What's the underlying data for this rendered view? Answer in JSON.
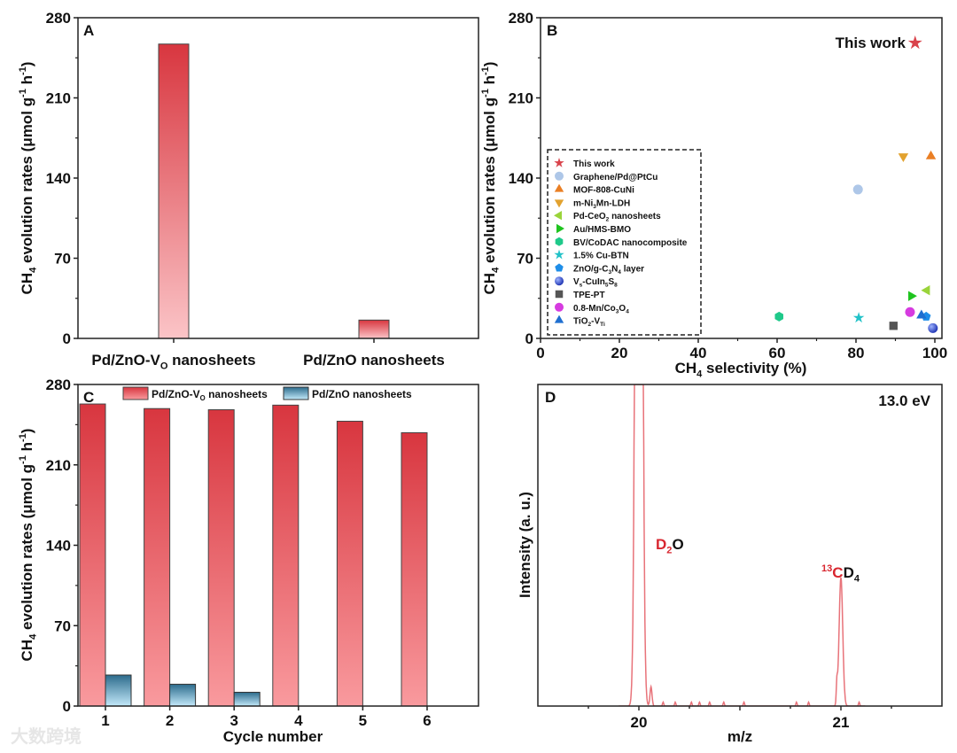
{
  "colors": {
    "red_top": "#d8363f",
    "red_bottom": "#fbc4c7",
    "red2_bottom": "#f99a9e",
    "blue_top": "#2c6b8c",
    "blue_bottom": "#c3e9fa",
    "spectrum": "#e8737a",
    "label_red": "#d8262f"
  },
  "chart_data": [
    {
      "panel": "A",
      "type": "bar",
      "categories": [
        "Pd/ZnO-_{V}{O} nanosheets",
        "Pd/ZnO nanosheets"
      ],
      "category_labels": [
        "Pd/ZnO-V_{O} nanosheets",
        "Pd/ZnO nanosheets"
      ],
      "values": [
        257,
        16
      ],
      "ylabel": "CH_{4} evolution rates (μmol g^{-1} h^{-1})",
      "ylim": [
        0,
        280
      ],
      "yticks": [
        0,
        70,
        140,
        210,
        280
      ]
    },
    {
      "panel": "B",
      "type": "scatter",
      "xlabel": "CH_{4} selectivity (%)",
      "ylabel": "CH_{4} evolution rates (μmol g^{-1} h^{-1})",
      "xlim": [
        0,
        100
      ],
      "xticks": [
        0,
        20,
        40,
        60,
        80,
        100
      ],
      "ylim": [
        0,
        280
      ],
      "yticks": [
        0,
        70,
        140,
        210,
        280
      ],
      "annotation": "This work",
      "legend_position": "left",
      "series": [
        {
          "name": "This work",
          "marker": "star",
          "color": "#d9434b",
          "x": 95,
          "y": 258
        },
        {
          "name": "Graphene/Pd@PtCu",
          "marker": "circle",
          "color": "#aec7e8",
          "x": 80.5,
          "y": 130
        },
        {
          "name": "MOF-808-CuNi",
          "marker": "triangle-up",
          "color": "#ea7f24",
          "x": 99,
          "y": 159
        },
        {
          "name": "m-Ni_{3}Mn-LDH",
          "marker": "triangle-down",
          "color": "#e2a22f",
          "x": 92,
          "y": 159
        },
        {
          "name": "Pd-CeO_{2} nanosheets",
          "marker": "triangle-left",
          "color": "#9ad43a",
          "x": 98,
          "y": 42
        },
        {
          "name": "Au/HMS-BMO",
          "marker": "triangle-right",
          "color": "#1fc41f",
          "x": 94,
          "y": 37
        },
        {
          "name": "BV/CoDAC nanocomposite",
          "marker": "hexagon",
          "color": "#1fc98a",
          "x": 60.5,
          "y": 19
        },
        {
          "name": "1.5% Cu-BTN",
          "marker": "star",
          "color": "#22c2c8",
          "x": 80.7,
          "y": 18
        },
        {
          "name": "ZnO/g-C_{3}N_{4} layer",
          "marker": "pentagon",
          "color": "#1f8ee8",
          "x": 97.8,
          "y": 19
        },
        {
          "name": "V_{s}-CuIn_{5}S_{8}",
          "marker": "sphere",
          "color": "#1a3fd0",
          "x": 99.5,
          "y": 9
        },
        {
          "name": "TPE-PT",
          "marker": "square",
          "color": "#555555",
          "x": 89.5,
          "y": 11
        },
        {
          "name": "0.8-Mn/Co_{3}O_{4}",
          "marker": "circle",
          "color": "#d63be0",
          "x": 93.7,
          "y": 23
        },
        {
          "name": "TiO_{2}-V_{Ti}",
          "marker": "triangle-up",
          "color": "#1f6fd0",
          "x": 96.6,
          "y": 20
        }
      ]
    },
    {
      "panel": "C",
      "type": "bar",
      "xlabel": "Cycle number",
      "ylabel": "CH_{4} evolution rates (μmol g^{-1} h^{-1})",
      "categories": [
        "1",
        "2",
        "3",
        "4",
        "5",
        "6"
      ],
      "ylim": [
        0,
        280
      ],
      "yticks": [
        0,
        70,
        140,
        210,
        280
      ],
      "legend_position": "top",
      "series": [
        {
          "name": "Pd/ZnO-V_{O} nanosheets",
          "values": [
            263,
            259,
            258,
            262,
            248,
            238
          ]
        },
        {
          "name": "Pd/ZnO nanosheets",
          "values": [
            27,
            19,
            12,
            null,
            null,
            null
          ]
        }
      ]
    },
    {
      "panel": "D",
      "type": "line",
      "xlabel": "m/z",
      "ylabel": "Intensity (a. u.)",
      "xlim": [
        19.5,
        21.5
      ],
      "xticks": [
        20,
        21
      ],
      "ylim": [
        0,
        100
      ],
      "annotation": "13.0 eV",
      "peaks": [
        {
          "label": "D_{2}O",
          "red_part": "D_{2}",
          "black_part": "O",
          "x": 20.0,
          "y": 600
        },
        {
          "label": "^{13}CD_{4}",
          "red_part": "^{13}C",
          "black_part": "D_{4}",
          "x": 21.0,
          "y": 40
        }
      ]
    }
  ],
  "panel_letters": [
    "A",
    "B",
    "C",
    "D"
  ],
  "watermark": "大数跨境"
}
